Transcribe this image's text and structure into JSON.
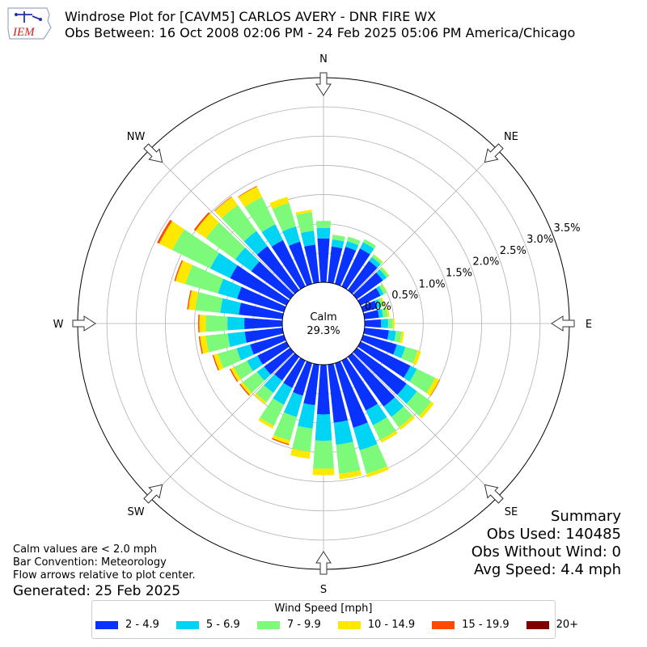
{
  "header": {
    "title_line1": "Windrose Plot for [CAVM5] CARLOS AVERY - DNR FIRE WX",
    "title_line2": "Obs Between: 16 Oct 2008 02:06 PM - 24 Feb 2025 05:06 PM America/Chicago",
    "logo_text": "IEM"
  },
  "notes": {
    "calm": "Calm values are < 2.0 mph",
    "convention": "Bar Convention: Meteorology",
    "flow": "Flow arrows relative to plot center.",
    "generated": "Generated: 25 Feb 2025"
  },
  "summary": {
    "title": "Summary",
    "obs_used": "Obs Used: 140485",
    "obs_without_wind": "Obs Without Wind: 0",
    "avg_speed": "Avg Speed: 4.4 mph"
  },
  "legend": {
    "title": "Wind Speed [mph]"
  },
  "chart_data": {
    "type": "windrose",
    "calm_label": "Calm",
    "calm_value": "29.3%",
    "radial_ticks": [
      "0.0%",
      "0.5%",
      "1.0%",
      "1.5%",
      "2.0%",
      "2.5%",
      "3.0%",
      "3.5%"
    ],
    "radial_range": [
      0,
      3.5
    ],
    "compass_labels": [
      "N",
      "NE",
      "E",
      "SE",
      "S",
      "SW",
      "W",
      "NW"
    ],
    "bins": [
      {
        "name": "2 - 4.9",
        "color": "#0a32ff"
      },
      {
        "name": "5 - 6.9",
        "color": "#00d4f5"
      },
      {
        "name": "7 - 9.9",
        "color": "#7dfa7a"
      },
      {
        "name": "10 - 14.9",
        "color": "#ffe800"
      },
      {
        "name": "15 - 19.9",
        "color": "#ff4a00"
      },
      {
        "name": "20+",
        "color": "#800000"
      }
    ],
    "directions_deg": [
      0,
      10,
      20,
      30,
      40,
      50,
      60,
      70,
      80,
      90,
      100,
      110,
      120,
      130,
      140,
      150,
      160,
      170,
      180,
      190,
      200,
      210,
      220,
      230,
      240,
      250,
      260,
      270,
      280,
      290,
      300,
      310,
      320,
      330,
      340,
      350
    ],
    "values": [
      [
        0.75,
        0.18,
        0.12,
        0,
        0,
        0
      ],
      [
        0.62,
        0.12,
        0.08,
        0,
        0,
        0
      ],
      [
        0.66,
        0.1,
        0.08,
        0,
        0,
        0
      ],
      [
        0.72,
        0.12,
        0.06,
        0,
        0,
        0
      ],
      [
        0.62,
        0.08,
        0.05,
        0.01,
        0,
        0
      ],
      [
        0.55,
        0.08,
        0.05,
        0.01,
        0,
        0
      ],
      [
        0.38,
        0.06,
        0.06,
        0.01,
        0,
        0
      ],
      [
        0.25,
        0.06,
        0.06,
        0.02,
        0,
        0
      ],
      [
        0.25,
        0.07,
        0.08,
        0.03,
        0,
        0
      ],
      [
        0.28,
        0.12,
        0.08,
        0.03,
        0,
        0
      ],
      [
        0.42,
        0.12,
        0.1,
        0.04,
        0,
        0
      ],
      [
        0.6,
        0.15,
        0.22,
        0.06,
        0,
        0
      ],
      [
        0.95,
        0.12,
        0.35,
        0.08,
        0.01,
        0
      ],
      [
        1.05,
        0.22,
        0.3,
        0.06,
        0,
        0
      ],
      [
        1.05,
        0.22,
        0.22,
        0.05,
        0,
        0
      ],
      [
        0.95,
        0.28,
        0.28,
        0.05,
        0,
        0
      ],
      [
        1.15,
        0.4,
        0.42,
        0.06,
        0,
        0
      ],
      [
        1.0,
        0.38,
        0.5,
        0.09,
        0,
        0
      ],
      [
        0.85,
        0.45,
        0.48,
        0.11,
        0,
        0
      ],
      [
        0.7,
        0.4,
        0.4,
        0.12,
        0,
        0
      ],
      [
        0.58,
        0.38,
        0.42,
        0.06,
        0.02,
        0
      ],
      [
        0.52,
        0.32,
        0.4,
        0.05,
        0,
        0
      ],
      [
        0.5,
        0.26,
        0.2,
        0.04,
        0,
        0
      ],
      [
        0.55,
        0.15,
        0.3,
        0.05,
        0.02,
        0
      ],
      [
        0.55,
        0.2,
        0.25,
        0.06,
        0.02,
        0
      ],
      [
        0.6,
        0.24,
        0.33,
        0.08,
        0.02,
        0
      ],
      [
        0.65,
        0.29,
        0.38,
        0.1,
        0.02,
        0
      ],
      [
        0.65,
        0.29,
        0.37,
        0.11,
        0.02,
        0
      ],
      [
        0.75,
        0.32,
        0.43,
        0.12,
        0.02,
        0
      ],
      [
        0.83,
        0.34,
        0.58,
        0.18,
        0.02,
        0
      ],
      [
        1.07,
        0.38,
        0.72,
        0.25,
        0.04,
        0
      ],
      [
        0.82,
        0.34,
        0.62,
        0.22,
        0.03,
        0
      ],
      [
        0.93,
        0.32,
        0.55,
        0.17,
        0.01,
        0
      ],
      [
        0.88,
        0.3,
        0.52,
        0.2,
        0.01,
        0
      ],
      [
        0.75,
        0.27,
        0.42,
        0.11,
        0,
        0
      ],
      [
        0.65,
        0.24,
        0.32,
        0.04,
        0,
        0
      ]
    ]
  }
}
